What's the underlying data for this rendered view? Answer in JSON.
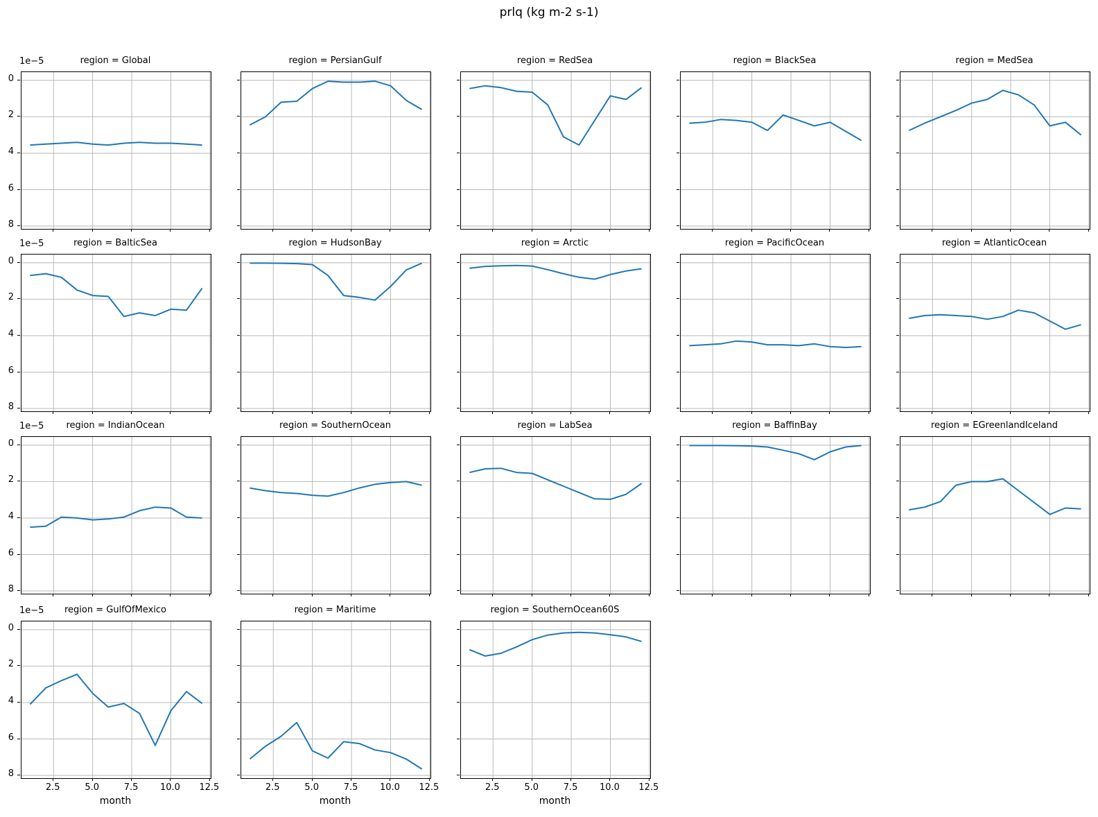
{
  "title": "prlq (kg m-2 s-1)",
  "chart_data": {
    "type": "line",
    "layout": "facet-grid",
    "grid_columns": 5,
    "facet_title_prefix": "region = ",
    "xlabel": "month",
    "x": [
      1,
      2,
      3,
      4,
      5,
      6,
      7,
      8,
      9,
      10,
      11,
      12
    ],
    "xlim": [
      0.45,
      12.55
    ],
    "x_ticks": [
      2.5,
      5.0,
      7.5,
      10.0,
      12.5
    ],
    "x_tick_labels": [
      "2.5",
      "5.0",
      "7.5",
      "10.0",
      "12.5"
    ],
    "y_axis_inverted": true,
    "y_offset_label": "1e−5",
    "y_unit": "1e-5 kg m-2 s-1",
    "y_ticks": [
      0,
      2,
      4,
      6,
      8
    ],
    "y_tick_labels": [
      "0",
      "2",
      "4",
      "6",
      "8"
    ],
    "ylim_top": -0.45,
    "ylim_bottom": 8.15,
    "grid_on": true,
    "line_color": "#1f77b4",
    "grid_color": "#b9b9b9",
    "spine_color": "#000000",
    "series": [
      {
        "name": "Global",
        "values": [
          3.55,
          3.5,
          3.45,
          3.4,
          3.5,
          3.55,
          3.45,
          3.4,
          3.45,
          3.45,
          3.5,
          3.55
        ]
      },
      {
        "name": "PersianGulf",
        "values": [
          2.45,
          2.0,
          1.2,
          1.15,
          0.45,
          0.05,
          0.1,
          0.1,
          0.05,
          0.3,
          1.1,
          1.6
        ]
      },
      {
        "name": "RedSea",
        "values": [
          0.45,
          0.3,
          0.4,
          0.6,
          0.65,
          1.35,
          3.1,
          3.55,
          2.2,
          0.85,
          1.05,
          0.4
        ]
      },
      {
        "name": "BlackSea",
        "values": [
          2.35,
          2.3,
          2.15,
          2.2,
          2.3,
          2.75,
          1.9,
          2.2,
          2.5,
          2.3,
          2.8,
          3.3
        ]
      },
      {
        "name": "MedSea",
        "values": [
          2.75,
          2.35,
          2.0,
          1.65,
          1.25,
          1.05,
          0.55,
          0.8,
          1.35,
          2.5,
          2.3,
          3.0
        ]
      },
      {
        "name": "BalticSea",
        "values": [
          0.7,
          0.6,
          0.8,
          1.5,
          1.8,
          1.85,
          2.95,
          2.75,
          2.9,
          2.55,
          2.6,
          1.4
        ]
      },
      {
        "name": "HudsonBay",
        "values": [
          0.02,
          0.02,
          0.03,
          0.05,
          0.1,
          0.7,
          1.8,
          1.9,
          2.05,
          1.3,
          0.4,
          0.02
        ]
      },
      {
        "name": "Arctic",
        "values": [
          0.3,
          0.2,
          0.17,
          0.15,
          0.18,
          0.38,
          0.6,
          0.8,
          0.9,
          0.65,
          0.45,
          0.33
        ]
      },
      {
        "name": "PacificOcean",
        "values": [
          4.55,
          4.5,
          4.45,
          4.3,
          4.35,
          4.5,
          4.5,
          4.55,
          4.45,
          4.6,
          4.65,
          4.6
        ]
      },
      {
        "name": "AtlanticOcean",
        "values": [
          3.05,
          2.9,
          2.85,
          2.9,
          2.95,
          3.1,
          2.95,
          2.6,
          2.75,
          3.2,
          3.65,
          3.4
        ]
      },
      {
        "name": "IndianOcean",
        "values": [
          4.5,
          4.45,
          3.95,
          4.0,
          4.1,
          4.05,
          3.95,
          3.6,
          3.4,
          3.45,
          3.95,
          4.0
        ]
      },
      {
        "name": "SouthernOcean",
        "values": [
          2.35,
          2.5,
          2.6,
          2.65,
          2.75,
          2.8,
          2.6,
          2.35,
          2.15,
          2.05,
          2.0,
          2.2
        ]
      },
      {
        "name": "LabSea",
        "values": [
          1.5,
          1.3,
          1.27,
          1.5,
          1.55,
          1.9,
          2.25,
          2.6,
          2.95,
          2.97,
          2.7,
          2.1
        ]
      },
      {
        "name": "BaffinBay",
        "values": [
          0.02,
          0.02,
          0.02,
          0.03,
          0.05,
          0.1,
          0.28,
          0.47,
          0.8,
          0.37,
          0.1,
          0.02
        ]
      },
      {
        "name": "EGreenlandIceland",
        "values": [
          3.55,
          3.4,
          3.1,
          2.2,
          2.0,
          2.0,
          1.85,
          2.5,
          3.15,
          3.8,
          3.45,
          3.5
        ]
      },
      {
        "name": "GulfOfMexico",
        "values": [
          4.1,
          3.2,
          2.8,
          2.45,
          3.5,
          4.25,
          4.05,
          4.6,
          6.35,
          4.45,
          3.4,
          4.05
        ]
      },
      {
        "name": "Maritime",
        "values": [
          7.1,
          6.4,
          5.85,
          5.1,
          6.65,
          7.05,
          6.15,
          6.25,
          6.6,
          6.75,
          7.1,
          7.65
        ]
      },
      {
        "name": "SouthernOcean60S",
        "values": [
          1.1,
          1.45,
          1.3,
          0.95,
          0.55,
          0.3,
          0.18,
          0.15,
          0.18,
          0.28,
          0.4,
          0.65
        ]
      }
    ]
  }
}
